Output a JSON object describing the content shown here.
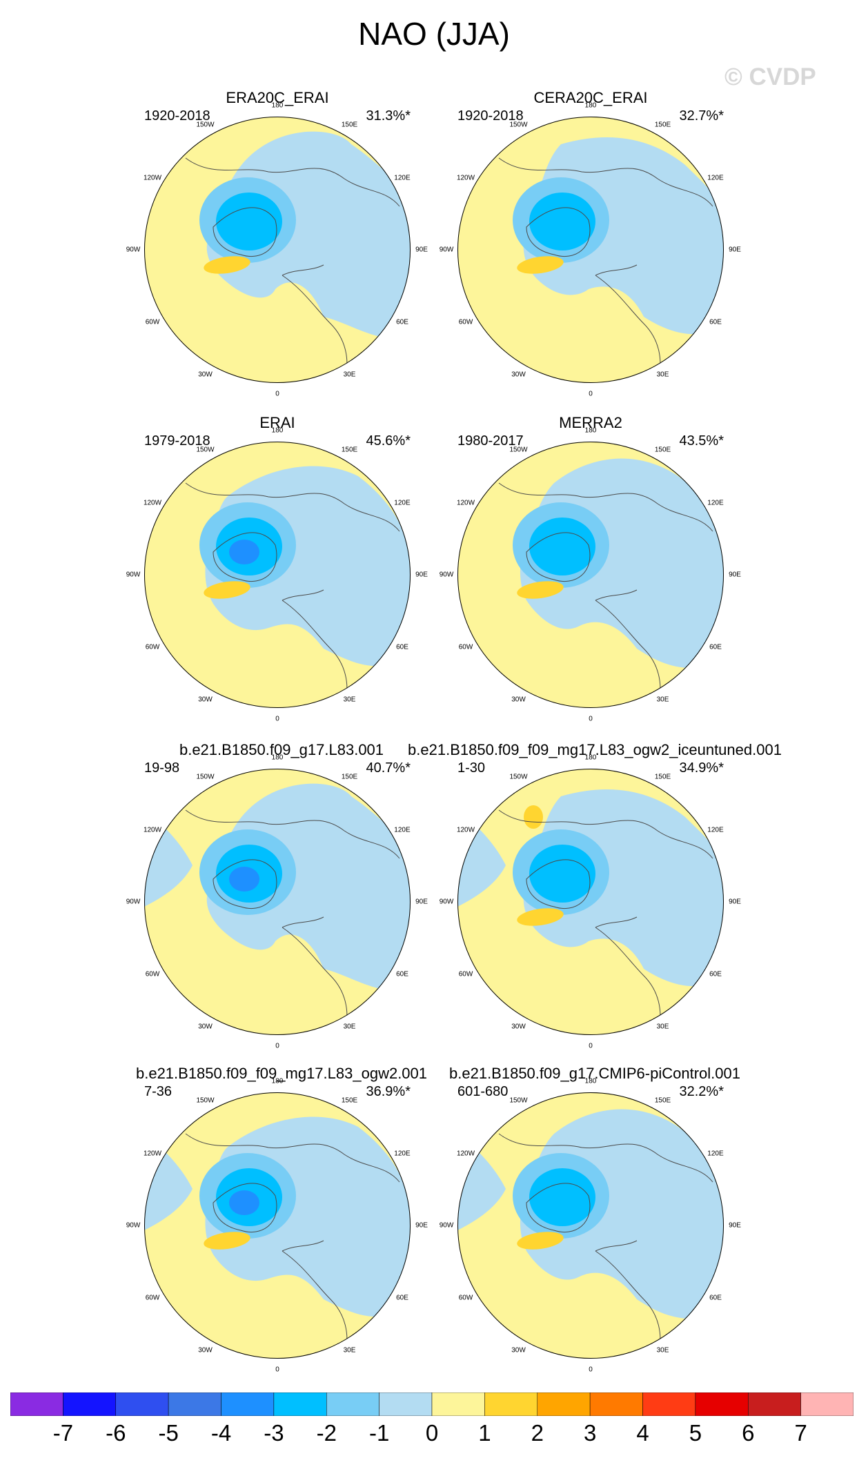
{
  "figure_title": "NAO (JJA)",
  "watermark": "© CVDP",
  "chart_data": [
    {
      "type": "heatmap",
      "title": "ERA20C_ERAI",
      "period": "1920-2018",
      "variance": "31.3%*",
      "projection": "north polar stereographic",
      "pattern": "negative center over Greenland/Arctic, positive band south of Greenland"
    },
    {
      "type": "heatmap",
      "title": "CERA20C_ERAI",
      "period": "1920-2018",
      "variance": "32.7%*",
      "projection": "north polar stereographic",
      "pattern": "negative center over Greenland/Arctic, positive band south of Greenland"
    },
    {
      "type": "heatmap",
      "title": "ERAI",
      "period": "1979-2018",
      "variance": "45.6%*",
      "projection": "north polar stereographic",
      "pattern": "negative center over Greenland/Arctic, positive band south of Greenland"
    },
    {
      "type": "heatmap",
      "title": "MERRA2",
      "period": "1980-2017",
      "variance": "43.5%*",
      "projection": "north polar stereographic",
      "pattern": "negative center over Greenland/Arctic, positive band south of Greenland"
    },
    {
      "type": "heatmap",
      "title": "b.e21.B1850.f09_g17.L83.001",
      "period": "19-98",
      "variance": "40.7%*",
      "projection": "north polar stereographic",
      "pattern": "negative center over Greenland/Arctic"
    },
    {
      "type": "heatmap",
      "title": "b.e21.B1850.f09_f09_mg17.L83_ogw2_iceuntuned.001",
      "period": "1-30",
      "variance": "34.9%*",
      "projection": "north polar stereographic",
      "pattern": "negative center, positive patches Pacific and Atlantic"
    },
    {
      "type": "heatmap",
      "title": "b.e21.B1850.f09_f09_mg17.L83_ogw2.001",
      "period": "7-36",
      "variance": "36.9%*",
      "projection": "north polar stereographic",
      "pattern": "negative center, positive band south of Greenland"
    },
    {
      "type": "heatmap",
      "title": "b.e21.B1850.f09_g17.CMIP6-piControl.001",
      "period": "601-680",
      "variance": "32.2%*",
      "projection": "north polar stereographic",
      "pattern": "negative center, positive band south of Greenland"
    }
  ],
  "lon_labels": [
    "180",
    "150E",
    "120E",
    "90E",
    "60E",
    "30E",
    "0",
    "30W",
    "60W",
    "90W",
    "120W",
    "150W"
  ],
  "colorbar": {
    "labels": [
      "-7",
      "-6",
      "-5",
      "-4",
      "-3",
      "-2",
      "-1",
      "0",
      "1",
      "2",
      "3",
      "4",
      "5",
      "6",
      "7"
    ],
    "colors": [
      "#8a2be2",
      "#1414ff",
      "#2f4ff0",
      "#3c78e6",
      "#1e90ff",
      "#00bfff",
      "#78cdf5",
      "#b3dcf2",
      "#fdf59a",
      "#ffd530",
      "#ffa500",
      "#ff7a00",
      "#ff3c14",
      "#e60000",
      "#c81e1e",
      "#ffb4b4"
    ]
  }
}
